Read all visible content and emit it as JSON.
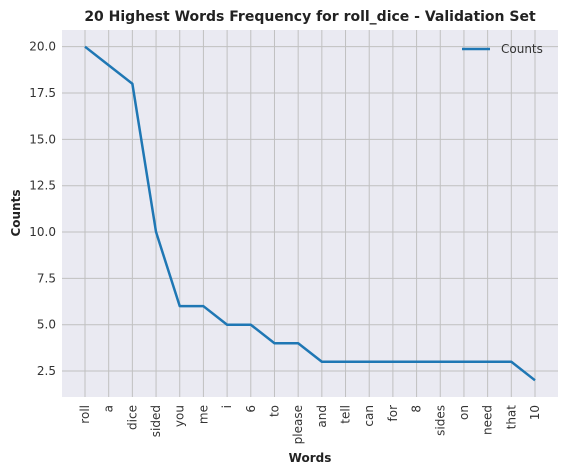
{
  "chart_data": {
    "type": "line",
    "title": "20 Highest Words Frequency for roll_dice - Validation Set",
    "xlabel": "Words",
    "ylabel": "Counts",
    "categories": [
      "roll",
      "a",
      "dice",
      "sided",
      "you",
      "me",
      "i",
      "6",
      "to",
      "please",
      "and",
      "tell",
      "can",
      "for",
      "8",
      "sides",
      "on",
      "need",
      "that",
      "10"
    ],
    "series": [
      {
        "name": "Counts",
        "values": [
          20,
          19,
          18,
          10,
          6,
          6,
          5,
          5,
          4,
          4,
          3,
          3,
          3,
          3,
          3,
          3,
          3,
          3,
          3,
          2
        ]
      }
    ],
    "yticks": [
      "2.5",
      "5.0",
      "7.5",
      "10.0",
      "12.5",
      "15.0",
      "17.5",
      "20.0"
    ],
    "ylim": [
      1.1,
      20.9
    ],
    "grid": true,
    "legend_position": "top-right",
    "colors": {
      "line": "#1f77b4",
      "plot_bg": "#eaeaf2",
      "grid": "#c0c0c0"
    }
  }
}
